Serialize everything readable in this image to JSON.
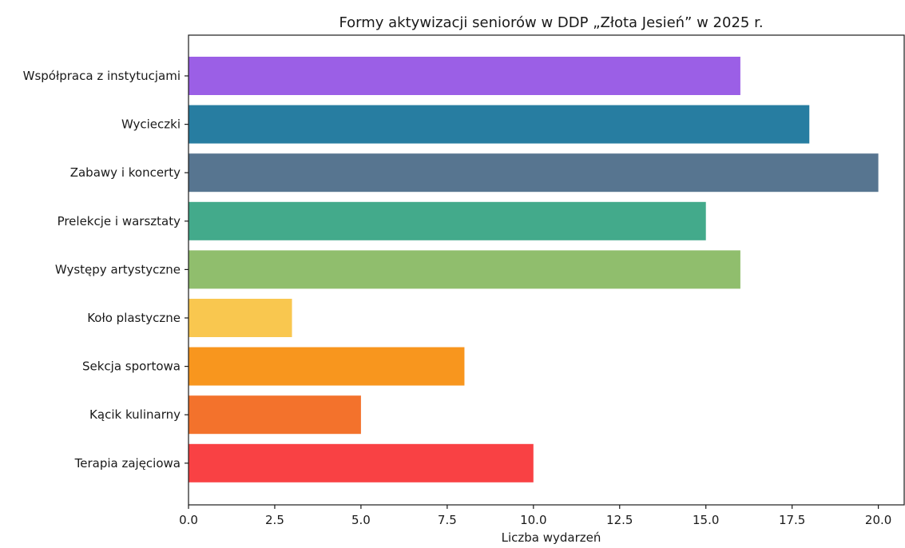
{
  "chart_data": {
    "type": "bar",
    "orientation": "horizontal",
    "title": "Formy aktywizacji seniorów w DDP „Złota Jesień” w 2025 r.",
    "xlabel": "Liczba wydarzeń",
    "ylabel": "",
    "xlim": [
      0,
      20.75
    ],
    "xticks": [
      "0.0",
      "2.5",
      "5.0",
      "7.5",
      "10.0",
      "12.5",
      "15.0",
      "17.5",
      "20.0"
    ],
    "grid": false,
    "categories": [
      "Współpraca z instytucjami",
      "Wycieczki",
      "Zabawy i koncerty",
      "Prelekcje i warsztaty",
      "Występy artystyczne",
      "Koło plastyczne",
      "Sekcja sportowa",
      "Kącik kulinarny",
      "Terapia zajęciowa"
    ],
    "values": [
      16,
      18,
      20,
      15,
      16,
      3,
      8,
      5,
      10
    ],
    "colors": [
      "#9b5fe6",
      "#277da1",
      "#577590",
      "#43aa8b",
      "#90be6d",
      "#f9c74f",
      "#f8961e",
      "#f3722c",
      "#f94144"
    ]
  }
}
